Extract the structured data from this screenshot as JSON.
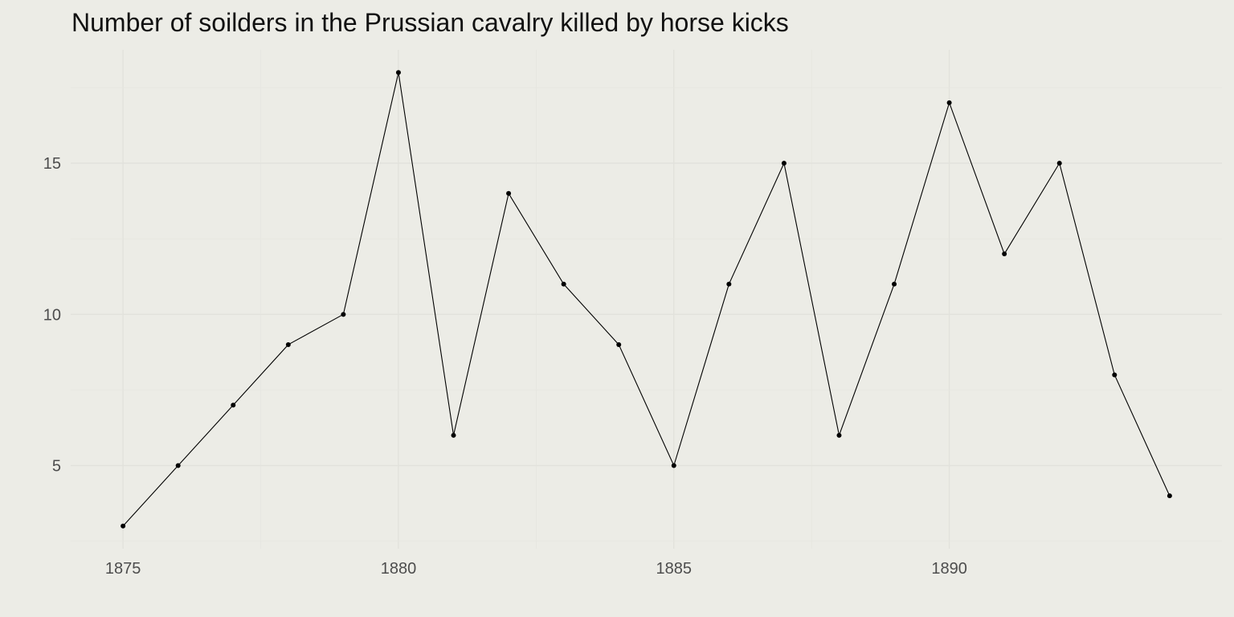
{
  "chart_data": {
    "type": "line",
    "title": "Number of soilders in the Prussian cavalry killed by horse kicks",
    "xlabel": "",
    "ylabel": "",
    "x": [
      1875,
      1876,
      1877,
      1878,
      1879,
      1880,
      1881,
      1882,
      1883,
      1884,
      1885,
      1886,
      1887,
      1888,
      1889,
      1890,
      1891,
      1892,
      1893,
      1894
    ],
    "series": [
      {
        "values": [
          3,
          5,
          7,
          9,
          10,
          18,
          6,
          14,
          11,
          9,
          5,
          11,
          15,
          6,
          11,
          17,
          12,
          15,
          8,
          4
        ]
      }
    ],
    "xlim": [
      1874.05,
      1894.95
    ],
    "ylim": [
      2.25,
      18.75
    ],
    "x_ticks": [
      1875,
      1880,
      1885,
      1890
    ],
    "x_tick_labels": [
      "1875",
      "1880",
      "1885",
      "1890"
    ],
    "y_ticks": [
      5,
      10,
      15
    ],
    "y_tick_labels": [
      "5",
      "10",
      "15"
    ],
    "grid": true,
    "legend": "none",
    "colors": {
      "background": "#ecece6",
      "line": "#000000",
      "grid": "#e2e2dc",
      "tick_text": "#4d4d4d"
    }
  }
}
